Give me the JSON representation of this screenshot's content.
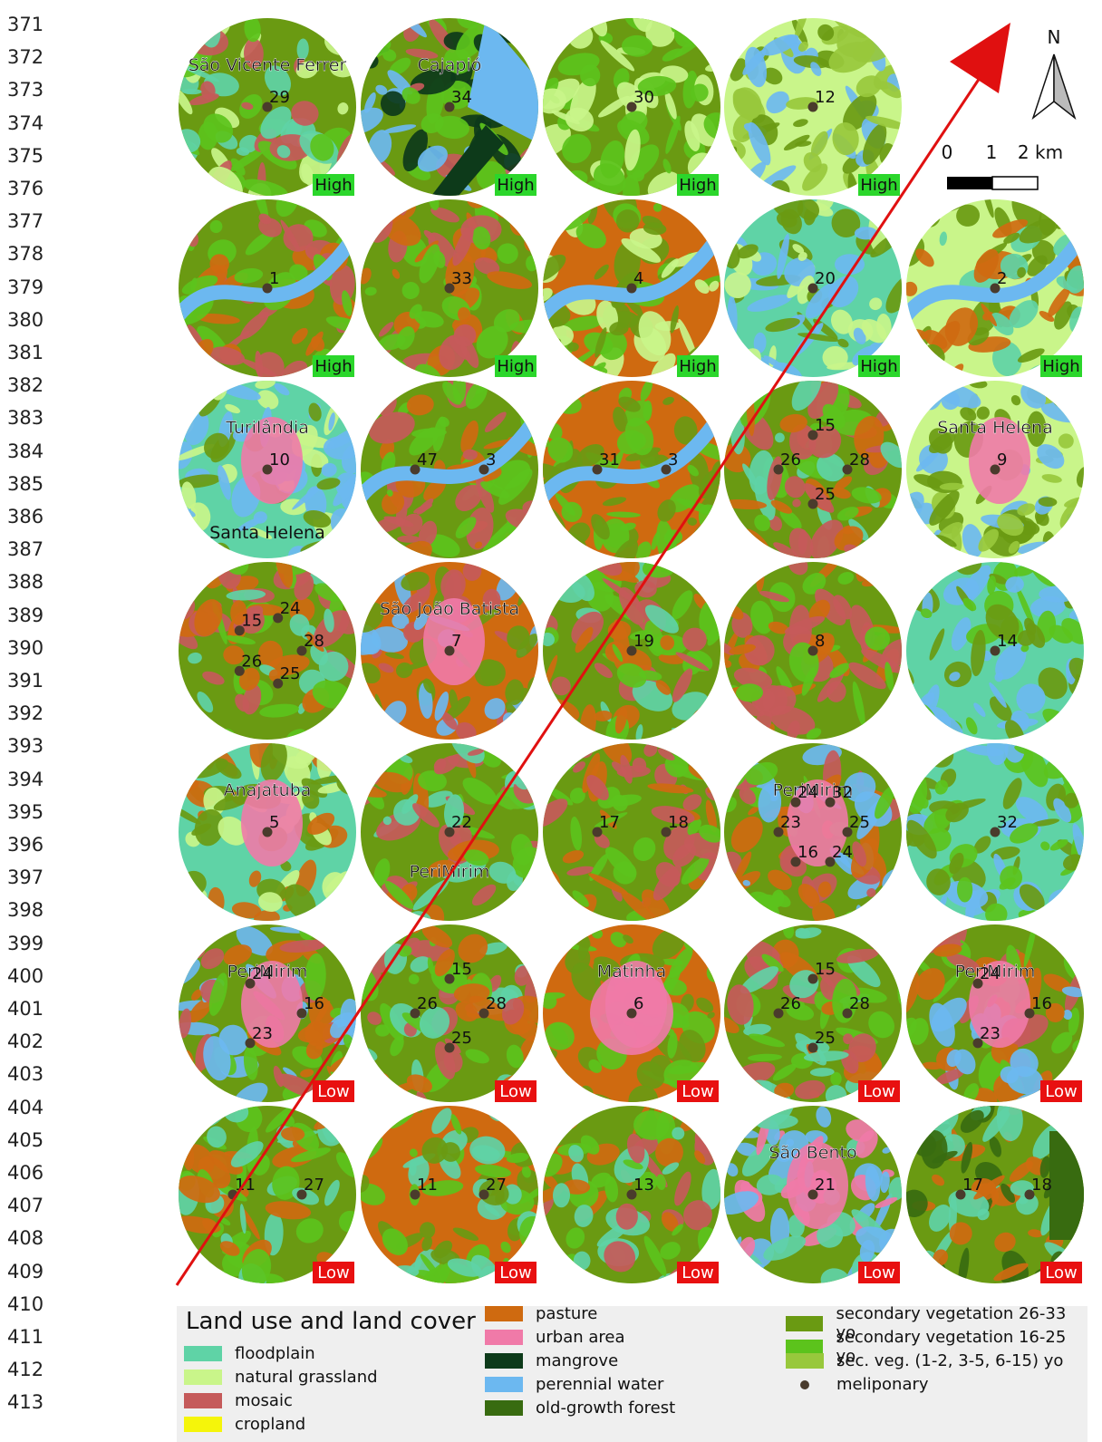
{
  "line_numbers": [
    "371",
    "372",
    "373",
    "374",
    "375",
    "376",
    "377",
    "378",
    "379",
    "380",
    "381",
    "382",
    "383",
    "384",
    "385",
    "386",
    "387",
    "388",
    "389",
    "390",
    "391",
    "392",
    "393",
    "394",
    "395",
    "396",
    "397",
    "398",
    "399",
    "400",
    "401",
    "402",
    "403",
    "404",
    "405",
    "406",
    "407",
    "408",
    "409",
    "410",
    "411",
    "412",
    "413"
  ],
  "colors": {
    "floodplain": "#5fd3a6",
    "natural_grassland": "#c9f58a",
    "mosaic": "#c55a5a",
    "cropland": "#f5f50a",
    "pasture": "#cf6a10",
    "urban": "#f07aa8",
    "mangrove": "#0d3a1a",
    "water": "#6cb8f0",
    "old_growth": "#386b10",
    "sec_26_33": "#6a9a12",
    "sec_16_25": "#5cc31c",
    "sec_1_15": "#98c83c",
    "meliponary": "#4a3b2c",
    "high_badge": "#2bd62b",
    "low_badge": "#e81010",
    "arrow": "#e01010"
  },
  "compass": {
    "north_label": "N"
  },
  "scale_bar": {
    "labels": [
      "0",
      "1",
      "2 km"
    ]
  },
  "maps": [
    {
      "base": "mixed_grass",
      "place": "São Vicente Ferrer",
      "points": [
        "29"
      ],
      "badge": "High"
    },
    {
      "base": "mangrove",
      "place": "Cajapió",
      "points": [
        "34"
      ],
      "badge": "High"
    },
    {
      "base": "forest_grass",
      "place": "",
      "points": [
        "30"
      ],
      "badge": "High"
    },
    {
      "base": "grass",
      "place": "",
      "points": [
        "12"
      ],
      "badge": "High"
    },
    {
      "base": "river_forest",
      "place": "",
      "points": [
        "1"
      ],
      "badge": "High"
    },
    {
      "base": "pasture_forest",
      "place": "",
      "points": [
        "33"
      ],
      "badge": "High"
    },
    {
      "base": "river_pasture",
      "place": "",
      "points": [
        "4"
      ],
      "badge": "High"
    },
    {
      "base": "flood_grass",
      "place": "",
      "points": [
        "20"
      ],
      "badge": "High"
    },
    {
      "base": "grass_river",
      "place": "",
      "points": [
        "2"
      ],
      "badge": "High"
    },
    {
      "base": "flood_urban",
      "place": "Turilândia",
      "place2": "Santa Helena",
      "points": [
        "10"
      ],
      "badge": ""
    },
    {
      "base": "river_pasture2",
      "place": "",
      "points": [
        "3",
        "47"
      ],
      "badge": ""
    },
    {
      "base": "pasture_river",
      "place": "",
      "points": [
        "3",
        "31"
      ],
      "badge": ""
    },
    {
      "base": "forest",
      "place": "",
      "points": [
        "28",
        "25",
        "26",
        "15"
      ],
      "badge": ""
    },
    {
      "base": "grass_urban",
      "place": "Santa Helena",
      "points": [
        "9"
      ],
      "badge": ""
    },
    {
      "base": "forest",
      "place": "",
      "points": [
        "28",
        "25",
        "26",
        "15",
        "24"
      ],
      "badge": ""
    },
    {
      "base": "urban_pasture",
      "place": "São João Batista",
      "points": [
        "7"
      ],
      "badge": ""
    },
    {
      "base": "forest",
      "place": "",
      "points": [
        "19"
      ],
      "badge": ""
    },
    {
      "base": "forest_pasture",
      "place": "",
      "points": [
        "8"
      ],
      "badge": ""
    },
    {
      "base": "flood",
      "place": "",
      "points": [
        "14"
      ],
      "badge": ""
    },
    {
      "base": "flood_urban2",
      "place": "Anajatuba",
      "points": [
        "5"
      ],
      "badge": ""
    },
    {
      "base": "forest",
      "place": "PeriMirim",
      "placeBottom": true,
      "points": [
        "22"
      ],
      "badge": ""
    },
    {
      "base": "forest_pasture",
      "place": "",
      "points": [
        "18",
        "17"
      ],
      "badge": ""
    },
    {
      "base": "urban_forest",
      "place": "PeriMirim",
      "points": [
        "25",
        "24",
        "16",
        "23",
        "24",
        "32"
      ],
      "badge": ""
    },
    {
      "base": "flood",
      "place": "",
      "points": [
        "32"
      ],
      "badge": ""
    },
    {
      "base": "urban_forest",
      "place": "PeriMirim",
      "points": [
        "16",
        "23",
        "24"
      ],
      "badge": "Low"
    },
    {
      "base": "forest",
      "place": "",
      "points": [
        "28",
        "25",
        "26",
        "15"
      ],
      "badge": "Low"
    },
    {
      "base": "pasture_urban",
      "place": "Matinha",
      "points": [
        "6"
      ],
      "badge": "Low"
    },
    {
      "base": "forest",
      "place": "",
      "points": [
        "28",
        "25",
        "26",
        "15"
      ],
      "badge": "Low"
    },
    {
      "base": "urban_forest",
      "place": "PeriMirim",
      "points": [
        "16",
        "23",
        "24"
      ],
      "badge": "Low"
    },
    {
      "base": "flood_forest",
      "place": "",
      "points": [
        "27",
        "11"
      ],
      "badge": "Low"
    },
    {
      "base": "pasture_flood",
      "place": "",
      "points": [
        "27",
        "11"
      ],
      "badge": "Low"
    },
    {
      "base": "forest",
      "place": "",
      "points": [
        "13"
      ],
      "badge": "Low"
    },
    {
      "base": "urban_water",
      "place": "São Bento",
      "points": [
        "21"
      ],
      "badge": "Low"
    },
    {
      "base": "forest_old",
      "place": "",
      "points": [
        "18",
        "17"
      ],
      "badge": "Low"
    }
  ],
  "legend": {
    "title": "Land use and land cover",
    "col1": [
      {
        "label": "floodplain",
        "color": "#5fd3a6"
      },
      {
        "label": "natural grassland",
        "color": "#c9f58a"
      },
      {
        "label": "mosaic",
        "color": "#c55a5a"
      },
      {
        "label": "cropland",
        "color": "#f5f50a"
      }
    ],
    "col2": [
      {
        "label": "pasture",
        "color": "#cf6a10"
      },
      {
        "label": "urban area",
        "color": "#f07aa8"
      },
      {
        "label": "mangrove",
        "color": "#0d3a1a"
      },
      {
        "label": "perennial water",
        "color": "#6cb8f0"
      },
      {
        "label": "old-growth forest",
        "color": "#386b10"
      }
    ],
    "col3": [
      {
        "label": "secondary vegetation 26-33 yo",
        "color": "#6a9a12"
      },
      {
        "label": "secondary vegetation 16-25 yo",
        "color": "#5cc31c"
      },
      {
        "label": "sec. veg. (1-2, 3-5, 6-15) yo",
        "color": "#98c83c"
      },
      {
        "label": "meliponary",
        "color": "dot"
      }
    ]
  }
}
